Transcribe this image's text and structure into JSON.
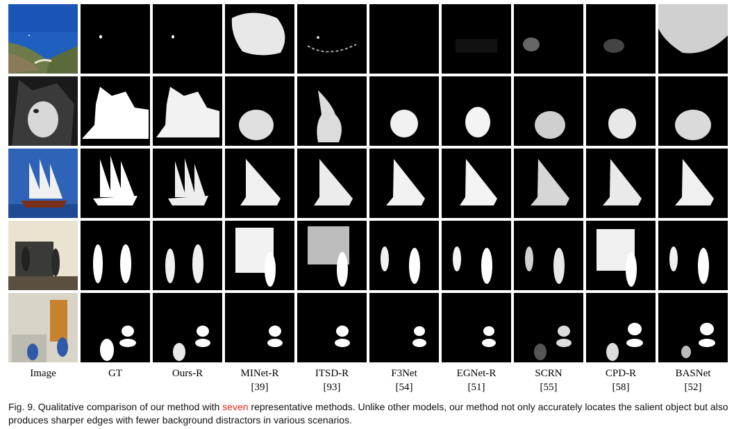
{
  "columns": [
    {
      "label": "Image",
      "ref": ""
    },
    {
      "label": "GT",
      "ref": ""
    },
    {
      "label": "Ours-R",
      "ref": ""
    },
    {
      "label": "MINet-R",
      "ref": "[39]"
    },
    {
      "label": "ITSD-R",
      "ref": "[93]"
    },
    {
      "label": "F3Net",
      "ref": "[54]"
    },
    {
      "label": "EGNet-R",
      "ref": "[51]"
    },
    {
      "label": "SCRN",
      "ref": "[55]"
    },
    {
      "label": "CPD-R",
      "ref": "[58]"
    },
    {
      "label": "BASNet",
      "ref": "[52]"
    }
  ],
  "caption": {
    "prefix": "Fig. 9. Qualitative comparison of our method with ",
    "highlight": "seven",
    "suffix": " representative methods. Unlike other models, our method not only accurately locates the salient object but also produces sharper edges with fewer background distractors in various scenarios.",
    "highlight_color": "#e8241c"
  },
  "rows": [
    "coast",
    "cat",
    "sailboat",
    "pedestrians",
    "lab-chairs"
  ]
}
